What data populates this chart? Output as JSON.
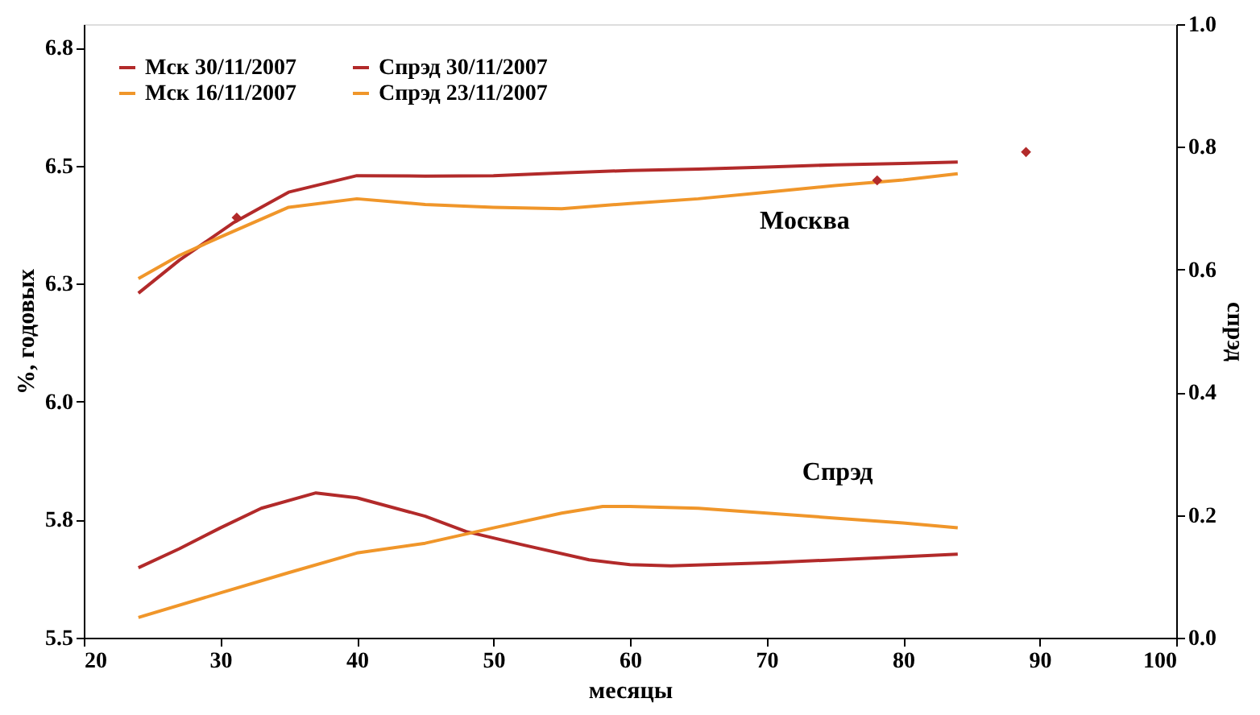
{
  "chart_data": {
    "type": "line",
    "xlabel": "месяцы",
    "ylabel": "%, годовых",
    "y2label": "спрэд",
    "xlim": [
      20,
      100
    ],
    "xticks": [
      20,
      30,
      40,
      50,
      60,
      70,
      80,
      90,
      100
    ],
    "ylim": [
      5.5,
      6.8
    ],
    "yticks": [
      5.5,
      {
        "value": 5.75,
        "label": "5.8"
      },
      {
        "value": 6.0,
        "label": "6.0"
      },
      {
        "value": 6.25,
        "label": "6.3"
      },
      6.5,
      {
        "value": 6.75,
        "label": "6.8"
      }
    ],
    "y2lim": [
      0,
      1.0
    ],
    "y2ticks": [
      {
        "value": 0,
        "label": "0.0"
      },
      0.2,
      0.4,
      0.6,
      0.8,
      {
        "value": 1,
        "label": "1.0"
      }
    ],
    "grid": false,
    "legend": "top left",
    "line_style": "solid",
    "marker": "none",
    "series": [
      {
        "name": "Мск 30/11/2007",
        "color": "#b22a2a",
        "x": [
          24,
          27,
          31,
          35,
          40,
          45,
          50,
          55,
          60,
          65,
          70,
          75,
          80,
          84
        ],
        "values": [
          6.23,
          6.3,
          6.38,
          6.444,
          6.479,
          6.478,
          6.479,
          6.485,
          6.49,
          6.493,
          6.497,
          6.502,
          6.505,
          6.508
        ]
      },
      {
        "name": "Мск 16/11/2007",
        "color": "#f0962a",
        "x": [
          24,
          27,
          30,
          35,
          40,
          45,
          50,
          55,
          60,
          65,
          70,
          75,
          80,
          84
        ],
        "values": [
          6.261,
          6.31,
          6.349,
          6.412,
          6.43,
          6.418,
          6.412,
          6.409,
          6.42,
          6.43,
          6.444,
          6.458,
          6.47,
          6.483
        ]
      },
      {
        "name": "Спрэд 30/11/2007",
        "color": "#b22a2a",
        "axis": "y2",
        "x": [
          24,
          27,
          30,
          33,
          37,
          40,
          45,
          48,
          52,
          57,
          60,
          63,
          70,
          78,
          84
        ],
        "values": [
          0.114,
          0.145,
          0.179,
          0.211,
          0.236,
          0.228,
          0.198,
          0.173,
          0.152,
          0.127,
          0.119,
          0.117,
          0.122,
          0.13,
          0.136
        ]
      },
      {
        "name": "Спрэд 23/11/2007",
        "color": "#f0962a",
        "axis": "y2",
        "x": [
          24,
          30,
          35,
          40,
          45,
          50,
          55,
          58,
          60,
          65,
          70,
          75,
          80,
          84
        ],
        "values": [
          0.033,
          0.073,
          0.106,
          0.138,
          0.154,
          0.179,
          0.203,
          0.214,
          0.214,
          0.211,
          0.203,
          0.195,
          0.187,
          0.179
        ]
      },
      {
        "type": "scatter",
        "marker": "diamond",
        "color": "#b22a2a",
        "x": [
          31.2,
          78.1,
          89
        ],
        "values": [
          6.39,
          6.469,
          6.529
        ]
      }
    ],
    "annotations": [
      "Москва",
      "Спрэд"
    ]
  }
}
